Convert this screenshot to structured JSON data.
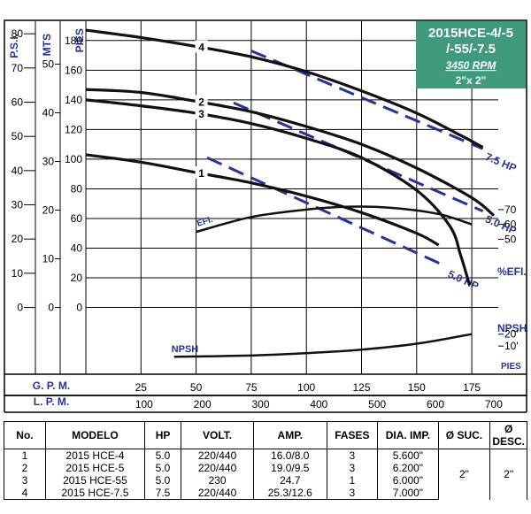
{
  "chart_data": {
    "type": "line",
    "title": [
      "2015HCE-4/-5",
      "/-55/-7.5"
    ],
    "subtitle": "3450 RPM",
    "size": "2\"x 2\"",
    "axes_left": {
      "psi": {
        "label": "P.S.I.",
        "ticks": [
          "0",
          "10",
          "20",
          "30",
          "40",
          "50",
          "60",
          "70",
          "80"
        ]
      },
      "mts": {
        "label": "MTS",
        "ticks": [
          "0",
          "10",
          "20",
          "30",
          "40",
          "50"
        ]
      },
      "pies": {
        "label": "PIES",
        "ticks": [
          "0",
          "20",
          "40",
          "60",
          "80",
          "100",
          "120",
          "140",
          "160",
          "180"
        ]
      }
    },
    "axis_right": {
      "efi_label": "%EFI.",
      "efi_ticks": [
        "70",
        "60",
        "50"
      ],
      "npsh_label": "NPSH",
      "npsh_ticks": [
        "20'",
        "10'"
      ],
      "npsh_unit": "PIES"
    },
    "x_axis": {
      "gpm_label": "G. P. M.",
      "gpm_ticks": [
        "25",
        "50",
        "75",
        "100",
        "125",
        "150",
        "175"
      ],
      "lpm_label": "L. P. M.",
      "lpm_ticks": [
        "100",
        "200",
        "300",
        "400",
        "500",
        "600",
        "700"
      ]
    },
    "xlim_gpm": [
      0,
      187
    ],
    "ylim_pies": [
      -45,
      193
    ],
    "series": [
      {
        "name": "1",
        "x": [
          0,
          25,
          50,
          75,
          100,
          125,
          150,
          160
        ],
        "y": [
          103,
          98,
          91,
          84,
          75,
          64,
          50,
          42
        ]
      },
      {
        "name": "2",
        "x": [
          0,
          25,
          50,
          75,
          100,
          125,
          150,
          175,
          185
        ],
        "y": [
          147,
          145,
          139,
          132,
          122,
          110,
          94,
          74,
          62
        ]
      },
      {
        "name": "3",
        "x": [
          0,
          25,
          50,
          75,
          100,
          125,
          150,
          165,
          170,
          174
        ],
        "y": [
          140,
          136,
          131,
          124,
          114,
          101,
          79,
          55,
          35,
          15
        ]
      },
      {
        "name": "4",
        "x": [
          0,
          25,
          50,
          75,
          100,
          125,
          150,
          170,
          180
        ],
        "y": [
          187,
          182,
          176,
          169,
          159,
          146,
          131,
          116,
          108
        ]
      }
    ],
    "hp_lines": [
      {
        "name": "7.5 HP",
        "x": [
          75,
          180
        ],
        "y": [
          173,
          107
        ]
      },
      {
        "name": "5.0 HP",
        "x": [
          67,
          180
        ],
        "y": [
          138,
          65
        ]
      },
      {
        "name": "5.0 HP",
        "x": [
          55,
          163
        ],
        "y": [
          101,
          28
        ]
      }
    ],
    "efficiency": {
      "name": "EFI.",
      "x": [
        50,
        75,
        100,
        120,
        140,
        160,
        175
      ],
      "y": [
        55,
        65,
        70,
        72,
        71,
        67,
        60
      ]
    },
    "npsh": {
      "name": "NPSH",
      "x": [
        40,
        75,
        100,
        125,
        150,
        175
      ],
      "y": [
        1,
        2,
        4,
        7,
        12,
        20
      ]
    },
    "grid": true
  },
  "table": {
    "headers": [
      "No.",
      "MODELO",
      "HP",
      "VOLT.",
      "AMP.",
      "FASES",
      "DIA. IMP.",
      "Ø SUC.",
      "Ø DESC."
    ],
    "rows": [
      [
        "1",
        "2015 HCE-4",
        "5.0",
        "220/440",
        "16.0/8.0",
        "3",
        "5.600\""
      ],
      [
        "2",
        "2015 HCE-5",
        "5.0",
        "220/440",
        "19.0/9.5",
        "3",
        "6.200\""
      ],
      [
        "3",
        "2015 HCE-55",
        "5.0",
        "230",
        "24.7",
        "1",
        "6.000\""
      ],
      [
        "4",
        "2015 HCE-7.5",
        "7.5",
        "220/440",
        "25.3/12.6",
        "3",
        "7.000\""
      ]
    ],
    "suction": "2\"",
    "discharge": "2\""
  },
  "colors": {
    "accent": "#3f9a7e",
    "blue": "#24349a",
    "curve": "#111111"
  }
}
